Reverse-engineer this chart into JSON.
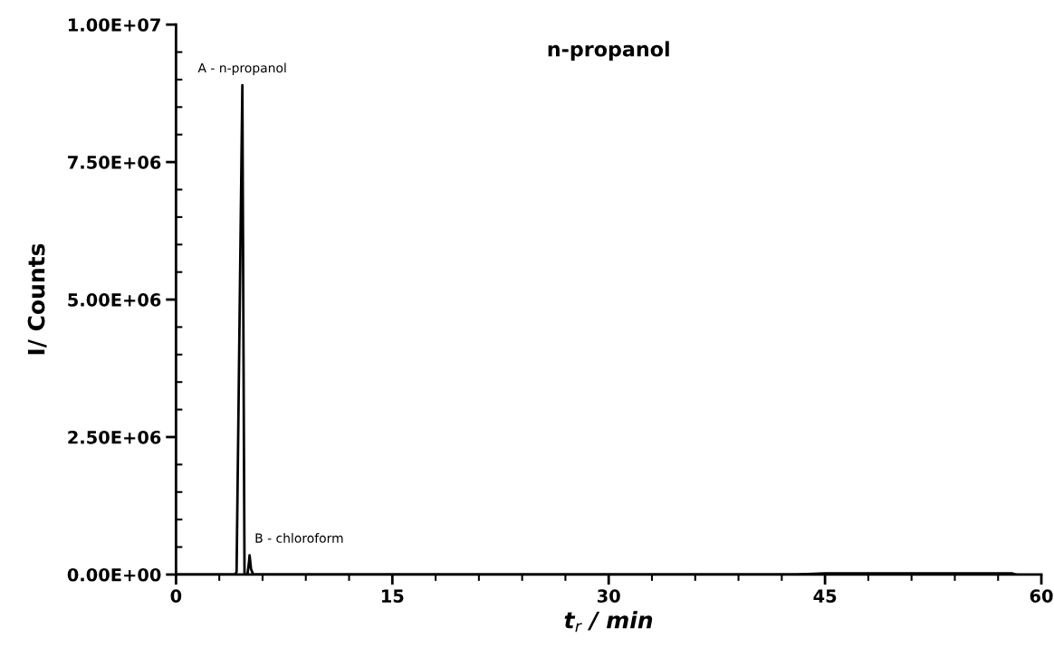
{
  "chart_data": {
    "type": "line",
    "title": "n-propanol",
    "xlabel": "t$_{r}$ / min",
    "ylabel": "I/ Counts",
    "x": [
      0,
      4.1,
      4.2,
      4.4,
      4.6,
      4.68,
      4.75,
      4.95,
      5.05,
      5.1,
      5.2,
      5.35,
      43,
      45,
      58,
      58.2
    ],
    "series": [
      {
        "color": "#000000",
        "values": [
          0,
          0,
          50000,
          4500000,
          8900000,
          4000000,
          0,
          0,
          200000,
          350000,
          100000,
          0,
          0,
          20000,
          20000,
          0
        ]
      }
    ],
    "xlim": [
      0,
      60
    ],
    "xticks": [
      0,
      15,
      30,
      45,
      60
    ],
    "ylim": [
      0,
      10000000
    ],
    "yticks": [
      {
        "value": 0,
        "label": "0.00E+00"
      },
      {
        "value": 2500000,
        "label": "2.50E+06"
      },
      {
        "value": 5000000,
        "label": "5.00E+06"
      },
      {
        "value": 7500000,
        "label": "7.50E+06"
      },
      {
        "value": 10000000,
        "label": "1.00E+07"
      }
    ],
    "grid": false,
    "marker": "none",
    "line_style": "solid",
    "annotations": [
      {
        "text": "A - n-propanol",
        "x": 4.6,
        "y": 8900000
      },
      {
        "text": "B - chloroform",
        "x": 5.1,
        "y": 350000
      }
    ]
  }
}
